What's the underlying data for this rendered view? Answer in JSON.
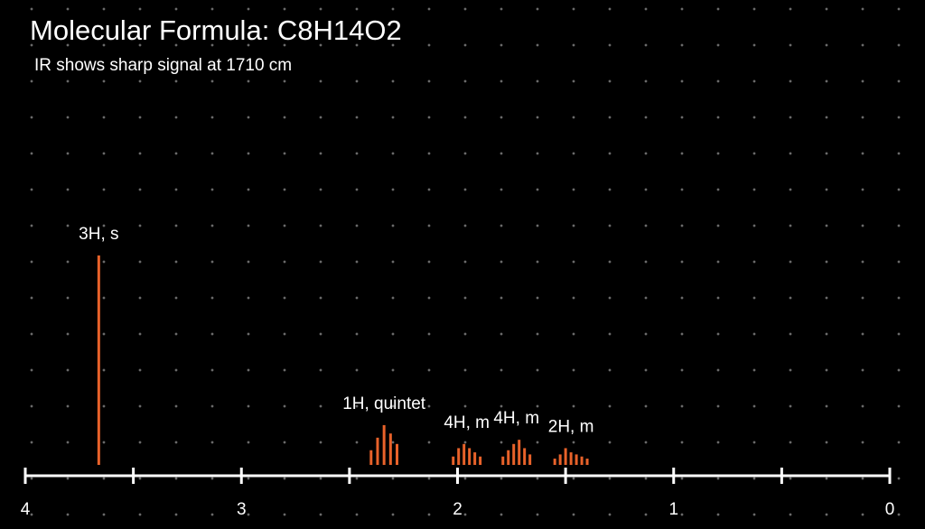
{
  "chart_data": {
    "type": "spectrum",
    "title": "Molecular Formula: C8H14O2",
    "subtitle": "IR shows sharp signal at 1710 cm",
    "xlim": [
      4,
      0
    ],
    "xticks": [
      4,
      3,
      2,
      1,
      0
    ],
    "xminorticks": [
      3.5,
      2.5,
      1.5,
      0.5
    ],
    "ylim": [
      0,
      1
    ],
    "color": "#e8622a",
    "peaks": [
      {
        "label": "3H, s",
        "x": [
          3.66
        ],
        "values": [
          1.0
        ]
      },
      {
        "label": "1H, quintet",
        "x": [
          2.4,
          2.37,
          2.34,
          2.31,
          2.28
        ],
        "values": [
          0.07,
          0.13,
          0.19,
          0.15,
          0.1
        ]
      },
      {
        "label": "4H, m",
        "x": [
          2.02,
          1.995,
          1.97,
          1.945,
          1.92,
          1.895
        ],
        "values": [
          0.04,
          0.08,
          0.1,
          0.08,
          0.06,
          0.04
        ]
      },
      {
        "label": "4H, m",
        "x": [
          1.79,
          1.765,
          1.74,
          1.715,
          1.69,
          1.665
        ],
        "values": [
          0.04,
          0.07,
          0.1,
          0.12,
          0.08,
          0.05
        ]
      },
      {
        "label": "2H, m",
        "x": [
          1.55,
          1.525,
          1.5,
          1.475,
          1.45,
          1.425,
          1.4
        ],
        "values": [
          0.03,
          0.05,
          0.08,
          0.06,
          0.05,
          0.04,
          0.03
        ]
      }
    ]
  }
}
